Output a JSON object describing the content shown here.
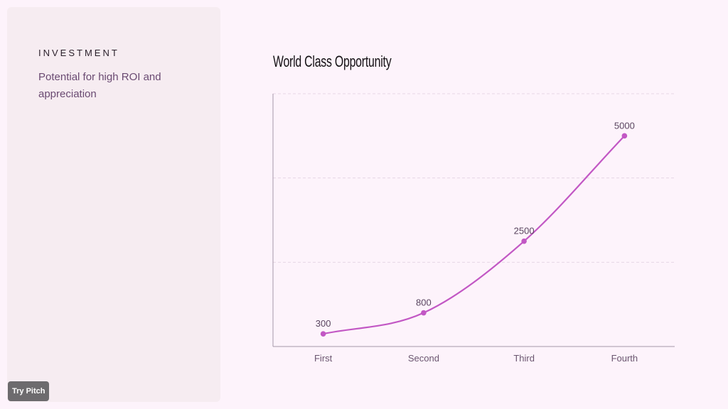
{
  "panel": {
    "kicker": "INVESTMENT",
    "subtitle": "Potential for high ROI and appreciation"
  },
  "badge": {
    "label": "Try Pitch"
  },
  "colors": {
    "line": "#c257c4",
    "grid": "#e6d7e6",
    "axis": "#a597a8"
  },
  "chart_data": {
    "type": "line",
    "title": "World Class Opportunity",
    "categories": [
      "First",
      "Second",
      "Third",
      "Fourth"
    ],
    "series": [
      {
        "values": [
          300,
          800,
          2500,
          5000
        ]
      }
    ],
    "xlabel": "",
    "ylabel": "",
    "ylim": [
      0,
      6000
    ],
    "grid": true,
    "data_labels": true,
    "smooth": true
  }
}
